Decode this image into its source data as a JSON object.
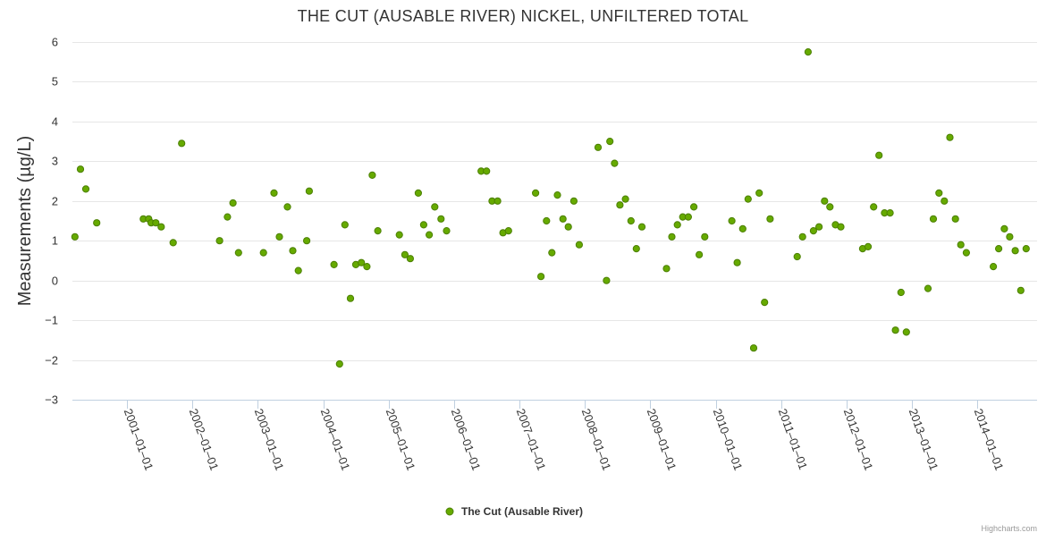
{
  "chart_data": {
    "type": "scatter",
    "title": "THE CUT (AUSABLE RIVER) NICKEL, UNFILTERED TOTAL",
    "ylabel": "Measurements (µg/L)",
    "xlabel": "",
    "ylim": [
      -3,
      6
    ],
    "yticks": [
      6,
      5,
      4,
      3,
      2,
      1,
      0,
      -1,
      -2,
      -3
    ],
    "xlim": [
      "2000-03-01",
      "2014-12-01"
    ],
    "xticks": [
      "2001-01-01",
      "2002-01-01",
      "2003-01-01",
      "2004-01-01",
      "2005-01-01",
      "2006-01-01",
      "2007-01-01",
      "2008-01-01",
      "2009-01-01",
      "2010-01-01",
      "2011-01-01",
      "2012-01-01",
      "2013-01-01",
      "2014-01-01"
    ],
    "grid": "horizontal",
    "legend_position": "bottom-center",
    "colors": {
      "marker_fill": "#66aa00",
      "marker_stroke": "#4b7f00",
      "grid": "#e6e6e6",
      "axis": "#c0d0e0"
    },
    "series": [
      {
        "name": "The Cut (Ausable River)",
        "points": [
          [
            "2000-03-15",
            1.1
          ],
          [
            "2000-04-15",
            2.8
          ],
          [
            "2000-05-15",
            2.3
          ],
          [
            "2000-07-15",
            1.45
          ],
          [
            "2001-04-01",
            1.55
          ],
          [
            "2001-05-01",
            1.55
          ],
          [
            "2001-05-15",
            1.45
          ],
          [
            "2001-06-10",
            1.45
          ],
          [
            "2001-07-10",
            1.35
          ],
          [
            "2001-09-15",
            0.95
          ],
          [
            "2001-11-01",
            3.45
          ],
          [
            "2002-06-01",
            1.0
          ],
          [
            "2002-07-15",
            1.6
          ],
          [
            "2002-08-15",
            1.95
          ],
          [
            "2002-09-15",
            0.7
          ],
          [
            "2003-02-01",
            0.7
          ],
          [
            "2003-04-01",
            2.2
          ],
          [
            "2003-05-01",
            1.1
          ],
          [
            "2003-06-15",
            1.85
          ],
          [
            "2003-07-15",
            0.75
          ],
          [
            "2003-08-15",
            0.25
          ],
          [
            "2003-10-01",
            1.0
          ],
          [
            "2003-10-15",
            2.25
          ],
          [
            "2004-03-01",
            0.4
          ],
          [
            "2004-04-01",
            -2.1
          ],
          [
            "2004-05-01",
            1.4
          ],
          [
            "2004-06-01",
            -0.45
          ],
          [
            "2004-07-01",
            0.4
          ],
          [
            "2004-08-01",
            0.45
          ],
          [
            "2004-09-01",
            0.35
          ],
          [
            "2004-10-01",
            2.65
          ],
          [
            "2004-11-01",
            1.25
          ],
          [
            "2005-03-01",
            1.15
          ],
          [
            "2005-04-01",
            0.65
          ],
          [
            "2005-05-01",
            0.55
          ],
          [
            "2005-06-15",
            2.2
          ],
          [
            "2005-07-15",
            1.4
          ],
          [
            "2005-08-15",
            1.15
          ],
          [
            "2005-09-15",
            1.85
          ],
          [
            "2005-10-20",
            1.55
          ],
          [
            "2005-11-20",
            1.25
          ],
          [
            "2006-06-01",
            2.75
          ],
          [
            "2006-07-01",
            2.75
          ],
          [
            "2006-08-01",
            2.0
          ],
          [
            "2006-09-01",
            2.0
          ],
          [
            "2006-10-01",
            1.2
          ],
          [
            "2006-11-01",
            1.25
          ],
          [
            "2007-04-01",
            2.2
          ],
          [
            "2007-05-01",
            0.1
          ],
          [
            "2007-06-01",
            1.5
          ],
          [
            "2007-07-01",
            0.7
          ],
          [
            "2007-08-01",
            2.15
          ],
          [
            "2007-09-01",
            1.55
          ],
          [
            "2007-10-01",
            1.35
          ],
          [
            "2007-11-01",
            2.0
          ],
          [
            "2007-12-01",
            0.9
          ],
          [
            "2008-03-15",
            3.35
          ],
          [
            "2008-05-01",
            0.0
          ],
          [
            "2008-05-20",
            3.5
          ],
          [
            "2008-06-15",
            2.95
          ],
          [
            "2008-07-15",
            1.9
          ],
          [
            "2008-08-15",
            2.05
          ],
          [
            "2008-09-15",
            1.5
          ],
          [
            "2008-10-15",
            0.8
          ],
          [
            "2008-11-15",
            1.35
          ],
          [
            "2009-04-01",
            0.3
          ],
          [
            "2009-05-01",
            1.1
          ],
          [
            "2009-06-01",
            1.4
          ],
          [
            "2009-07-01",
            1.6
          ],
          [
            "2009-08-01",
            1.6
          ],
          [
            "2009-09-01",
            1.85
          ],
          [
            "2009-10-01",
            0.65
          ],
          [
            "2009-11-01",
            1.1
          ],
          [
            "2010-04-01",
            1.5
          ],
          [
            "2010-05-01",
            0.45
          ],
          [
            "2010-06-01",
            1.3
          ],
          [
            "2010-07-01",
            2.05
          ],
          [
            "2010-08-01",
            -1.7
          ],
          [
            "2010-09-01",
            2.2
          ],
          [
            "2010-10-01",
            -0.55
          ],
          [
            "2010-11-01",
            1.55
          ],
          [
            "2011-04-01",
            0.6
          ],
          [
            "2011-05-01",
            1.1
          ],
          [
            "2011-06-01",
            5.75
          ],
          [
            "2011-07-01",
            1.25
          ],
          [
            "2011-08-01",
            1.35
          ],
          [
            "2011-09-01",
            2.0
          ],
          [
            "2011-10-01",
            1.85
          ],
          [
            "2011-11-01",
            1.4
          ],
          [
            "2011-12-01",
            1.35
          ],
          [
            "2012-04-01",
            0.8
          ],
          [
            "2012-05-01",
            0.85
          ],
          [
            "2012-06-01",
            1.85
          ],
          [
            "2012-07-01",
            3.15
          ],
          [
            "2012-08-01",
            1.7
          ],
          [
            "2012-09-01",
            1.7
          ],
          [
            "2012-10-01",
            -1.25
          ],
          [
            "2012-11-01",
            -0.3
          ],
          [
            "2012-12-01",
            -1.3
          ],
          [
            "2013-04-01",
            -0.2
          ],
          [
            "2013-05-01",
            1.55
          ],
          [
            "2013-06-01",
            2.2
          ],
          [
            "2013-07-01",
            2.0
          ],
          [
            "2013-08-01",
            3.6
          ],
          [
            "2013-09-01",
            1.55
          ],
          [
            "2013-10-01",
            0.9
          ],
          [
            "2013-11-01",
            0.7
          ],
          [
            "2014-04-01",
            0.35
          ],
          [
            "2014-05-01",
            0.8
          ],
          [
            "2014-06-01",
            1.3
          ],
          [
            "2014-07-01",
            1.1
          ],
          [
            "2014-08-01",
            0.75
          ],
          [
            "2014-09-01",
            -0.25
          ],
          [
            "2014-10-01",
            0.8
          ]
        ]
      }
    ]
  },
  "credits": "Highcharts.com"
}
